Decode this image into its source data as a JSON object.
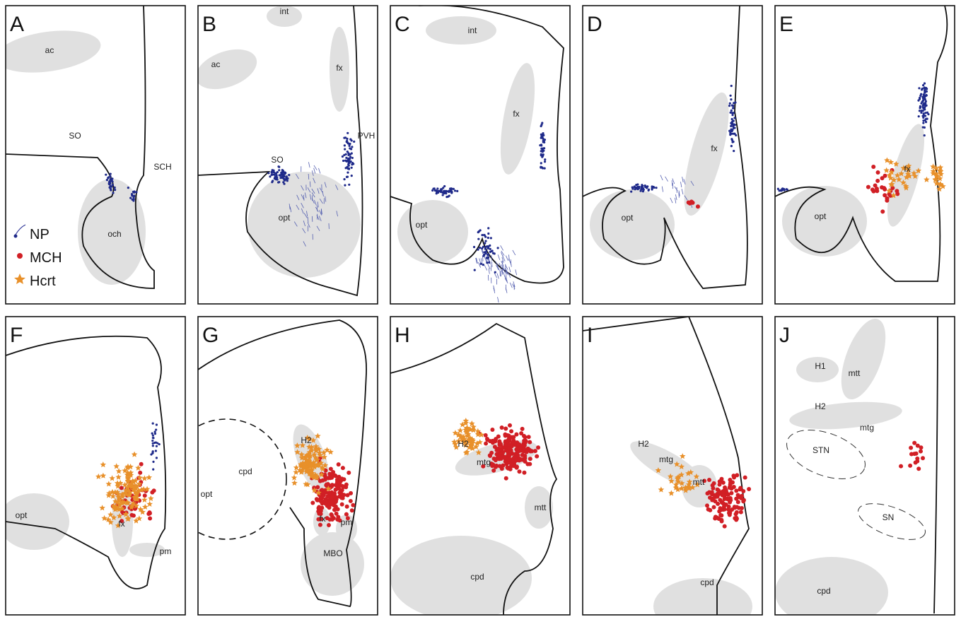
{
  "panels": [
    {
      "letter": "A",
      "labels": [
        "ac",
        "SO",
        "SCH",
        "och"
      ]
    },
    {
      "letter": "B",
      "labels": [
        "int",
        "ac",
        "fx",
        "PVH",
        "SO",
        "opt"
      ]
    },
    {
      "letter": "C",
      "labels": [
        "int",
        "fx",
        "opt"
      ]
    },
    {
      "letter": "D",
      "labels": [
        "fx",
        "opt"
      ]
    },
    {
      "letter": "E",
      "labels": [
        "fx",
        "opt"
      ]
    },
    {
      "letter": "F",
      "labels": [
        "opt",
        "fx",
        "pm"
      ]
    },
    {
      "letter": "G",
      "labels": [
        "cpd",
        "opt",
        "H2",
        "fx",
        "pm",
        "MBO"
      ]
    },
    {
      "letter": "H",
      "labels": [
        "H2",
        "mtg",
        "mtt",
        "cpd"
      ]
    },
    {
      "letter": "I",
      "labels": [
        "H2",
        "mtg",
        "mtt",
        "cpd"
      ]
    },
    {
      "letter": "J",
      "labels": [
        "H1",
        "mtt",
        "H2",
        "mtg",
        "STN",
        "SN",
        "cpd"
      ]
    }
  ],
  "legend": {
    "items": [
      "NP",
      "MCH",
      "Hcrt"
    ]
  }
}
